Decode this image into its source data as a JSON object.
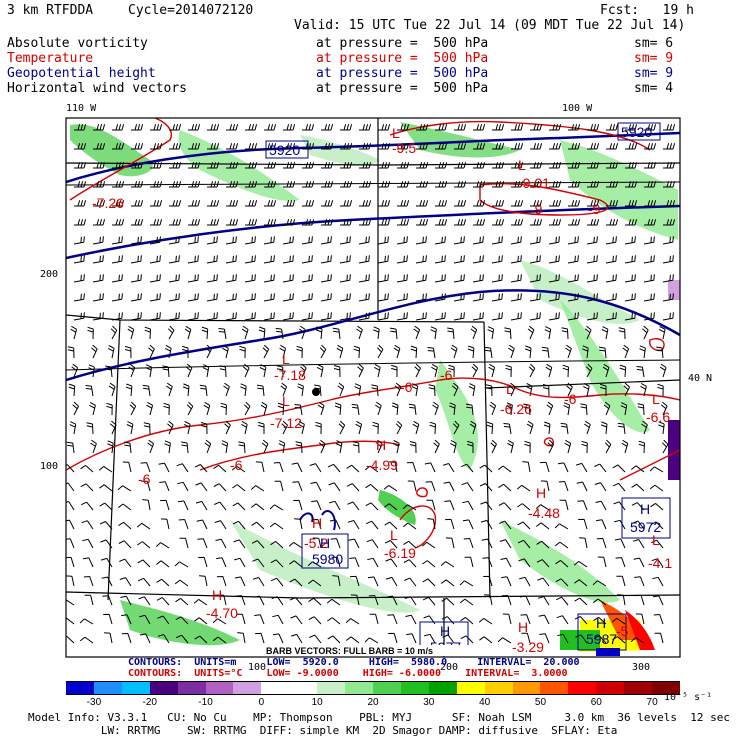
{
  "header": {
    "model": "3 km RTFDDA",
    "cycle": "Cycle=2014072120",
    "fcst": "Fcst:   19 h",
    "valid": "Valid: 15 UTC Tue 22 Jul 14 (09 MDT Tue 22 Jul 14)"
  },
  "fields": [
    {
      "name": "Absolute vorticity",
      "level": "at pressure =  500 hPa",
      "sm": "sm= 6",
      "color": "#000000"
    },
    {
      "name": "Temperature",
      "level": "at pressure =  500 hPa",
      "sm": "sm= 9",
      "color": "#d40000"
    },
    {
      "name": "Geopotential height",
      "level": "at pressure =  500 hPa",
      "sm": "sm= 9",
      "color": "#00008b"
    },
    {
      "name": "Horizontal wind vectors",
      "level": "at pressure =  500 hPa",
      "sm": "sm= 4",
      "color": "#000000"
    }
  ],
  "axes": {
    "lon_left": "110 W",
    "lon_right": "100 W",
    "lat_right": "40 N",
    "y_200": "200",
    "y_100": "100",
    "x_100": "100",
    "x_200": "200",
    "x_300": "300"
  },
  "map_labels": {
    "temperature": [
      {
        "text": "-7.26"
      },
      {
        "text": "-9.5"
      },
      {
        "text": "L"
      },
      {
        "text": "-9.01"
      },
      {
        "text": "-9"
      },
      {
        "text": "-9"
      },
      {
        "text": "L"
      },
      {
        "text": "-7.18"
      },
      {
        "text": "L"
      },
      {
        "text": "-7.12"
      },
      {
        "text": "-6"
      },
      {
        "text": "-6"
      },
      {
        "text": "L"
      },
      {
        "text": "-6.26"
      },
      {
        "text": "-6"
      },
      {
        "text": "L"
      },
      {
        "text": "-6.6"
      },
      {
        "text": "H"
      },
      {
        "text": "-4.99"
      },
      {
        "text": "-6"
      },
      {
        "text": "-6"
      },
      {
        "text": "H"
      },
      {
        "text": "-4.48"
      },
      {
        "text": "H"
      },
      {
        "text": "-5.2"
      },
      {
        "text": "L"
      },
      {
        "text": "-6.19"
      },
      {
        "text": "-4.1"
      },
      {
        "text": "H"
      },
      {
        "text": "-4.70"
      },
      {
        "text": "H"
      },
      {
        "text": "-3.29"
      },
      {
        "text": "-5"
      },
      {
        "text": "L"
      },
      {
        "text": "L"
      }
    ],
    "heights": [
      {
        "text": "5920"
      },
      {
        "text": "5920"
      },
      {
        "text": "H"
      },
      {
        "text": "5972"
      },
      {
        "text": "H"
      },
      {
        "text": "5980"
      },
      {
        "text": "H"
      },
      {
        "text": "5977"
      },
      {
        "text": "H"
      },
      {
        "text": "5987"
      }
    ]
  },
  "barb_note": "BARB VECTORS: FULL BARB = 10 m/s",
  "contours": {
    "height_line": "CONTOURS:  UNITS=m     LOW=  5920.0     HIGH=  5980.0     INTERVAL=  20.000",
    "temp_line": "CONTOURS:  UNITS=°C    LOW= -9.0000    HIGH= -6.0000    INTERVAL=  3.0000"
  },
  "colorbar": {
    "colors": [
      "#0000cd",
      "#1e90ff",
      "#00bfff",
      "#4b0082",
      "#7b2fa0",
      "#b060c0",
      "#d0a0e0",
      "#ffffff",
      "#ffffff",
      "#c8f0c8",
      "#90e890",
      "#50d050",
      "#20c020",
      "#00a000",
      "#ffff00",
      "#ffd000",
      "#ff9900",
      "#ff5500",
      "#ff0000",
      "#d00000",
      "#a00000",
      "#800000"
    ],
    "labels": [
      "-30",
      "-20",
      "-10",
      "0",
      "10",
      "20",
      "30",
      "40",
      "50",
      "60",
      "70"
    ],
    "units": "10⁻⁵ s⁻¹"
  },
  "footer": {
    "line1": "Model Info: V3.3.1   CU: No Cu    MP: Thompson    PBL: MYJ      SF: Noah LSM     3.0 km  36 levels  12 sec",
    "line2": "           LW: RRTMG    SW: RRTMG  DIFF: simple KM  2D Smagor DAMP: diffusive  SFLAY: Eta"
  }
}
